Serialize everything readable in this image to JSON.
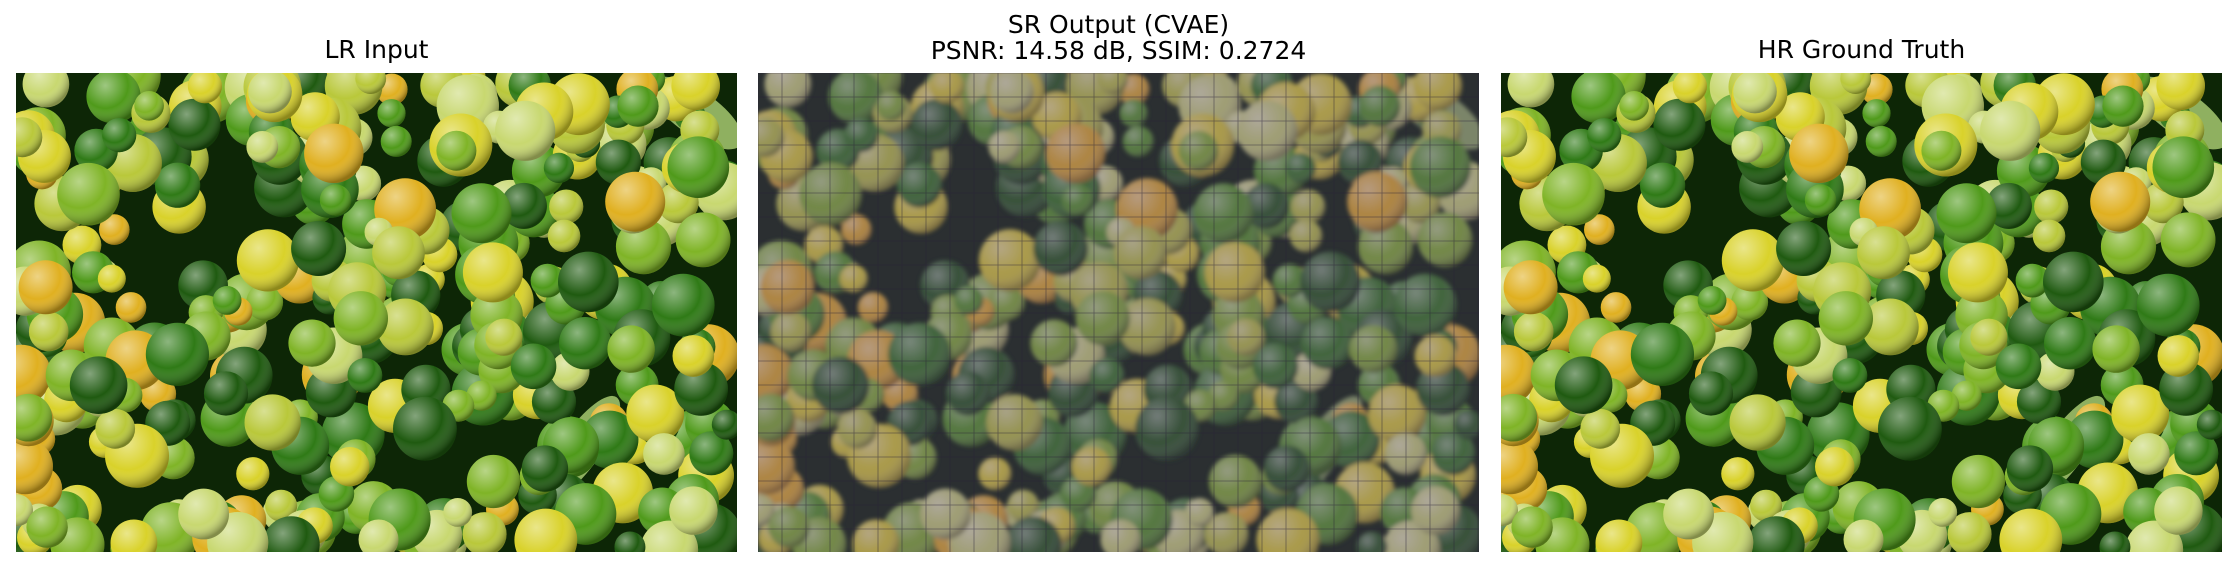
{
  "panels": [
    {
      "title": "LR Input",
      "image_desc": "sharp photo of many green and yellow limes"
    },
    {
      "title_line1": "SR Output (CVAE)",
      "title_line2": "PSNR: 14.58 dB, SSIM: 0.2724",
      "image_desc": "blurry, purple-tinted reconstruction of limes with visible grid artifacts"
    },
    {
      "title": "HR Ground Truth",
      "image_desc": "sharp photo of many green and yellow limes"
    }
  ],
  "colors": {
    "lime_dark": "#1f5a10",
    "lime_green": "#4f9a1a",
    "lime_yellow": "#d9d22a",
    "lime_pale": "#c8d870",
    "tint_purple": "#5d3f7a"
  }
}
